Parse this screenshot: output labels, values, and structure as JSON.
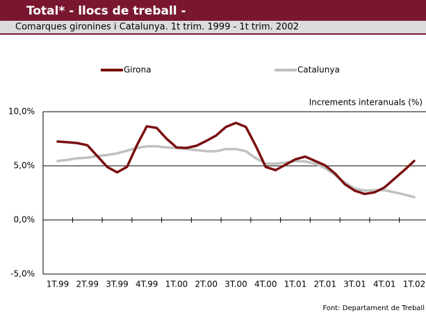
{
  "chart_data": {
    "type": "line",
    "title": "Total* - llocs de treball -",
    "subtitle": "Comarques gironines i Catalunya. 1t trim. 1999 - 1t trim. 2002",
    "ylabel": "Increments interanuals (%)",
    "source": "Font: Departament de Treball",
    "categories": [
      "1T.99",
      null,
      null,
      "2T.99",
      null,
      null,
      "3T.99",
      null,
      null,
      "4T.99",
      null,
      null,
      "1T.00",
      null,
      null,
      "2T.00",
      null,
      null,
      "3T.00",
      null,
      null,
      "4T.00",
      null,
      null,
      "1T.01",
      null,
      null,
      "2T.01",
      null,
      null,
      "3T.01",
      null,
      null,
      "4T.01",
      null,
      null,
      "1T.02"
    ],
    "series": [
      {
        "name": "Girona",
        "color": "#7b1010",
        "values": [
          7.24,
          7.18,
          7.1,
          6.9,
          5.9,
          4.9,
          4.4,
          4.9,
          6.9,
          8.65,
          8.5,
          7.5,
          6.7,
          6.65,
          6.85,
          7.3,
          7.8,
          8.6,
          8.97,
          8.6,
          6.85,
          4.9,
          4.6,
          5.1,
          5.6,
          5.85,
          5.45,
          5.05,
          4.3,
          3.3,
          2.7,
          2.4,
          2.55,
          3.0,
          3.8,
          4.6,
          5.45
        ]
      },
      {
        "name": "Catalunya",
        "color": "#c0c0c0",
        "values": [
          5.45,
          5.55,
          5.7,
          5.75,
          5.9,
          6.0,
          6.15,
          6.4,
          6.65,
          6.8,
          6.8,
          6.7,
          6.65,
          6.55,
          6.45,
          6.35,
          6.35,
          6.55,
          6.55,
          6.35,
          5.7,
          5.2,
          5.2,
          5.3,
          5.45,
          5.4,
          5.2,
          4.8,
          4.15,
          3.45,
          2.9,
          2.7,
          2.75,
          2.75,
          2.55,
          2.35,
          2.1
        ]
      }
    ],
    "ylim": [
      -5,
      10
    ],
    "yticks": [
      {
        "value": -5,
        "label": "-5,0%"
      },
      {
        "value": 0,
        "label": "0,0%"
      },
      {
        "value": 5,
        "label": "5,0%"
      },
      {
        "value": 10,
        "label": "10,0%"
      }
    ],
    "grid": true,
    "legend": "top"
  }
}
